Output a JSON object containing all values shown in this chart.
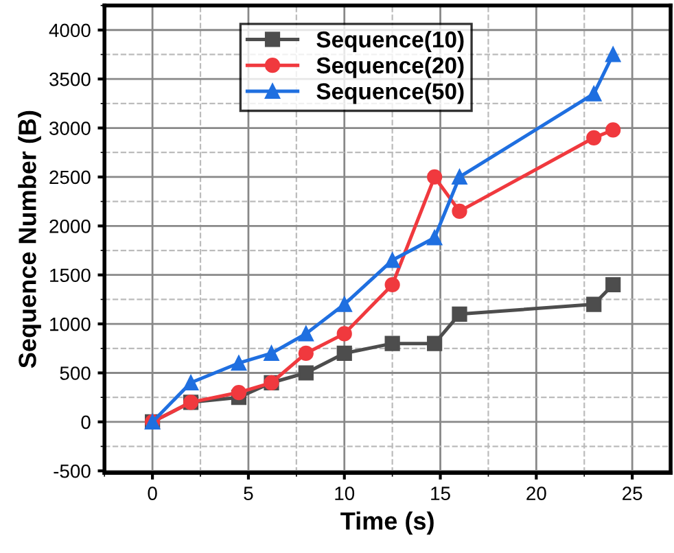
{
  "chart_data": {
    "type": "line",
    "xlabel": "Time (s)",
    "ylabel": "Sequence Number (B)",
    "x": [
      0,
      2,
      4.5,
      6.2,
      8,
      10,
      12.5,
      14.7,
      16,
      23,
      24
    ],
    "series": [
      {
        "name": "Sequence(10)",
        "color": "#4d4d4d",
        "marker": "square",
        "values": [
          0,
          200,
          250,
          400,
          500,
          700,
          800,
          800,
          1100,
          1200,
          1400
        ]
      },
      {
        "name": "Sequence(20)",
        "color": "#f0393e",
        "marker": "circle",
        "values": [
          0,
          200,
          300,
          400,
          700,
          900,
          1400,
          2500,
          2150,
          2900,
          2980
        ]
      },
      {
        "name": "Sequence(50)",
        "color": "#1f6fe0",
        "marker": "triangle",
        "values": [
          0,
          400,
          600,
          700,
          900,
          1200,
          1650,
          1880,
          2500,
          3350,
          3750
        ]
      }
    ],
    "xlim": [
      -2.5,
      27
    ],
    "xticks": [
      0,
      5,
      10,
      15,
      20,
      25
    ],
    "ylim": [
      -520,
      4250
    ],
    "yticks": [
      -500,
      0,
      500,
      1000,
      1500,
      2000,
      2500,
      3000,
      3500,
      4000
    ],
    "grid": true,
    "legend": "top left",
    "line_style": "solid"
  }
}
